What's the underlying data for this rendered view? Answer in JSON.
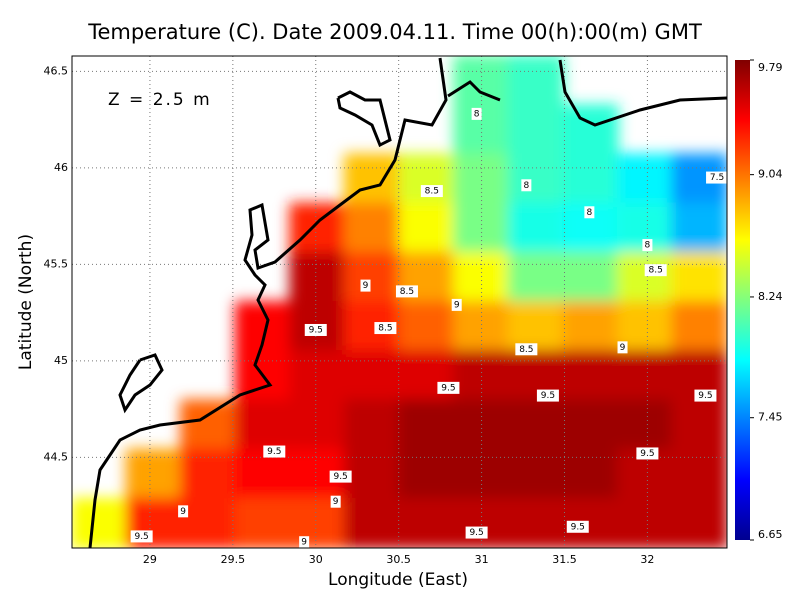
{
  "chart_data": {
    "type": "contour-map",
    "title": "Temperature (C). Date 2009.04.11. Time 00(h):00(m) GMT",
    "annotation": "Z = 2.5 m",
    "x_label": "Longitude (East)",
    "y_label": "Latitude (North)",
    "xlim": [
      28.53,
      32.48
    ],
    "ylim": [
      44.03,
      46.58
    ],
    "xticks": [
      29,
      29.5,
      30,
      30.5,
      31,
      31.5,
      32
    ],
    "yticks": [
      44.5,
      45,
      45.5,
      46,
      46.5
    ],
    "grid": true,
    "field": [
      [
        null,
        null,
        null,
        null,
        null,
        null,
        null,
        8.1,
        8.0,
        null,
        null,
        null
      ],
      [
        null,
        null,
        null,
        null,
        null,
        null,
        null,
        8.1,
        8.0,
        7.95,
        null,
        null
      ],
      [
        null,
        null,
        null,
        null,
        null,
        8.8,
        8.5,
        8.2,
        8.0,
        7.95,
        7.8,
        7.5
      ],
      [
        null,
        null,
        null,
        null,
        9.3,
        9.0,
        8.6,
        8.2,
        7.9,
        7.85,
        7.9,
        7.6
      ],
      [
        null,
        null,
        null,
        null,
        9.6,
        9.2,
        8.9,
        8.6,
        8.2,
        8.2,
        8.5,
        8.7
      ],
      [
        null,
        null,
        null,
        9.4,
        9.6,
        9.3,
        9.1,
        8.9,
        8.8,
        8.9,
        8.8,
        9.0
      ],
      [
        null,
        null,
        null,
        9.4,
        9.5,
        9.5,
        9.5,
        9.6,
        9.6,
        9.6,
        9.6,
        9.6
      ],
      [
        null,
        null,
        9.1,
        9.5,
        9.5,
        9.6,
        9.7,
        9.7,
        9.7,
        9.7,
        9.7,
        9.6
      ],
      [
        null,
        8.9,
        9.3,
        9.4,
        9.4,
        9.6,
        9.7,
        9.7,
        9.7,
        9.7,
        9.6,
        9.6
      ],
      [
        8.6,
        9.3,
        9.3,
        9.2,
        9.2,
        9.6,
        9.6,
        9.6,
        9.6,
        9.6,
        9.6,
        9.6
      ]
    ],
    "colorbar": {
      "lim": [
        6.65,
        9.79
      ],
      "ticks": [
        6.65,
        7.45,
        8.24,
        9.04,
        9.79
      ]
    },
    "contour_labels": [
      {
        "value": 8,
        "lon": 30.97,
        "lat": 46.28
      },
      {
        "value": 8,
        "lon": 31.27,
        "lat": 45.91
      },
      {
        "value": 8.5,
        "lon": 30.7,
        "lat": 45.88
      },
      {
        "value": 8,
        "lon": 31.65,
        "lat": 45.77
      },
      {
        "value": 7.5,
        "lon": 32.42,
        "lat": 45.95
      },
      {
        "value": 8,
        "lon": 32.0,
        "lat": 45.6
      },
      {
        "value": 8.5,
        "lon": 32.05,
        "lat": 45.47
      },
      {
        "value": 9,
        "lon": 30.3,
        "lat": 45.39
      },
      {
        "value": 8.5,
        "lon": 30.55,
        "lat": 45.36
      },
      {
        "value": 9,
        "lon": 30.85,
        "lat": 45.29
      },
      {
        "value": 9.5,
        "lon": 30.0,
        "lat": 45.16
      },
      {
        "value": 8.5,
        "lon": 30.42,
        "lat": 45.17
      },
      {
        "value": 8.5,
        "lon": 31.27,
        "lat": 45.06
      },
      {
        "value": 9,
        "lon": 31.85,
        "lat": 45.07
      },
      {
        "value": 9.5,
        "lon": 30.8,
        "lat": 44.86
      },
      {
        "value": 9.5,
        "lon": 31.4,
        "lat": 44.82
      },
      {
        "value": 9.5,
        "lon": 32.35,
        "lat": 44.82
      },
      {
        "value": 9.5,
        "lon": 29.75,
        "lat": 44.53
      },
      {
        "value": 9.5,
        "lon": 32.0,
        "lat": 44.52
      },
      {
        "value": 9.5,
        "lon": 30.15,
        "lat": 44.4
      },
      {
        "value": 9,
        "lon": 30.12,
        "lat": 44.27
      },
      {
        "value": 9,
        "lon": 29.2,
        "lat": 44.22
      },
      {
        "value": 9.5,
        "lon": 28.95,
        "lat": 44.09
      },
      {
        "value": 9,
        "lon": 29.93,
        "lat": 44.06
      },
      {
        "value": 9.5,
        "lon": 30.97,
        "lat": 44.11
      },
      {
        "value": 9.5,
        "lon": 31.58,
        "lat": 44.14
      }
    ]
  }
}
